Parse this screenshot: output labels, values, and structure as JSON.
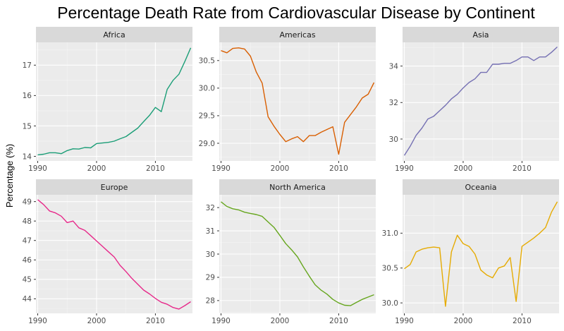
{
  "chart_data": {
    "type": "line",
    "title": "Percentage Death Rate from Cardiovascular Disease by Continent",
    "ylabel": "Percentage (%)",
    "xlabel": "",
    "x": [
      1990,
      1991,
      1992,
      1993,
      1994,
      1995,
      1996,
      1997,
      1998,
      1999,
      2000,
      2001,
      2002,
      2003,
      2004,
      2005,
      2006,
      2007,
      2008,
      2009,
      2010,
      2011,
      2012,
      2013,
      2014,
      2015,
      2016
    ],
    "x_ticks": [
      1990,
      2000,
      2010
    ],
    "x_tick_labels": [
      "1990",
      "2000",
      "2010"
    ],
    "xlim": [
      1989.7,
      2016.3
    ],
    "grid": true,
    "legend": "none",
    "panels": [
      {
        "name": "Africa",
        "color": "#1b9e77",
        "ylim": [
          13.85,
          17.75
        ],
        "y_ticks": [
          14,
          15,
          16,
          17
        ],
        "y_tick_labels": [
          "14",
          "15",
          "16",
          "17"
        ],
        "values": [
          14.05,
          14.07,
          14.12,
          14.12,
          14.09,
          14.19,
          14.25,
          14.24,
          14.29,
          14.28,
          14.42,
          14.44,
          14.46,
          14.5,
          14.58,
          14.65,
          14.79,
          14.93,
          15.14,
          15.35,
          15.61,
          15.47,
          16.2,
          16.5,
          16.7,
          17.12,
          17.57
        ]
      },
      {
        "name": "Americas",
        "color": "#d95f02",
        "ylim": [
          28.68,
          30.83
        ],
        "y_ticks": [
          29.0,
          29.5,
          30.0,
          30.5
        ],
        "y_tick_labels": [
          "29.0",
          "29.5",
          "30.0",
          "30.5"
        ],
        "values": [
          30.68,
          30.64,
          30.72,
          30.73,
          30.71,
          30.58,
          30.29,
          30.09,
          29.48,
          29.31,
          29.16,
          29.03,
          29.08,
          29.12,
          29.03,
          29.14,
          29.14,
          29.2,
          29.25,
          29.3,
          28.8,
          29.38,
          29.52,
          29.66,
          29.82,
          29.89,
          30.1
        ]
      },
      {
        "name": "Asia",
        "color": "#7570b3",
        "ylim": [
          28.8,
          35.3
        ],
        "y_ticks": [
          30,
          32,
          34
        ],
        "y_tick_labels": [
          "30",
          "32",
          "34"
        ],
        "values": [
          29.1,
          29.6,
          30.2,
          30.6,
          31.1,
          31.25,
          31.55,
          31.85,
          32.2,
          32.45,
          32.8,
          33.1,
          33.3,
          33.65,
          33.65,
          34.1,
          34.1,
          34.15,
          34.15,
          34.3,
          34.5,
          34.5,
          34.3,
          34.5,
          34.5,
          34.75,
          35.05
        ]
      },
      {
        "name": "Europe",
        "color": "#e7298a",
        "ylim": [
          43.25,
          49.35
        ],
        "y_ticks": [
          44,
          45,
          46,
          47,
          48,
          49
        ],
        "y_tick_labels": [
          "44",
          "45",
          "46",
          "47",
          "48",
          "49"
        ],
        "values": [
          49.1,
          48.85,
          48.52,
          48.42,
          48.25,
          47.92,
          48.0,
          47.65,
          47.52,
          47.25,
          46.97,
          46.7,
          46.42,
          46.15,
          45.72,
          45.4,
          45.05,
          44.75,
          44.45,
          44.25,
          44.02,
          43.82,
          43.72,
          43.55,
          43.47,
          43.65,
          43.85
        ]
      },
      {
        "name": "North America",
        "color": "#66a61e",
        "ylim": [
          27.45,
          32.55
        ],
        "y_ticks": [
          28,
          29,
          30,
          31,
          32
        ],
        "y_tick_labels": [
          "28",
          "29",
          "30",
          "31",
          "32"
        ],
        "values": [
          32.25,
          32.05,
          31.95,
          31.9,
          31.8,
          31.75,
          31.7,
          31.62,
          31.38,
          31.15,
          30.8,
          30.45,
          30.18,
          29.88,
          29.45,
          29.05,
          28.68,
          28.45,
          28.28,
          28.05,
          27.9,
          27.8,
          27.78,
          27.92,
          28.05,
          28.15,
          28.25
        ]
      },
      {
        "name": "Oceania",
        "color": "#e6ab02",
        "ylim": [
          29.85,
          31.55
        ],
        "y_ticks": [
          30.0,
          30.5,
          31.0
        ],
        "y_tick_labels": [
          "30.0",
          "30.5",
          "31.0"
        ],
        "values": [
          30.49,
          30.55,
          30.73,
          30.77,
          30.79,
          30.8,
          30.79,
          29.95,
          30.73,
          30.97,
          30.85,
          30.81,
          30.7,
          30.47,
          30.4,
          30.36,
          30.5,
          30.53,
          30.65,
          30.02,
          30.81,
          30.87,
          30.93,
          31.0,
          31.08,
          31.3,
          31.45
        ]
      }
    ]
  }
}
